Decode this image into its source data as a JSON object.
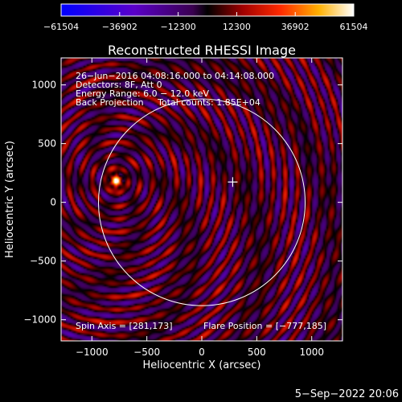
{
  "chart_data": {
    "type": "heatmap",
    "title": "Reconstructed RHESSI Image",
    "xlabel": "Heliocentric X (arcsec)",
    "ylabel": "Heliocentric Y (arcsec)",
    "xlim": [
      -1280,
      1280
    ],
    "ylim": [
      -1180,
      1230
    ],
    "x_ticks": [
      -1000,
      -500,
      0,
      500,
      1000
    ],
    "y_ticks": [
      -1000,
      -500,
      0,
      500,
      1000
    ],
    "x_tick_labels": [
      "−1000",
      "−500",
      "0",
      "500",
      "1000"
    ],
    "y_tick_labels": [
      "−1000",
      "−500",
      "0",
      "500",
      "1000"
    ],
    "colorbar": {
      "range": [
        -61504,
        61504
      ],
      "ticks": [
        -61504,
        -36902,
        -12300,
        12300,
        36902,
        61504
      ],
      "tick_labels": [
        "−61504",
        "−36902",
        "−12300",
        "12300",
        "36902",
        "61504"
      ]
    },
    "solar_limb_radius_arcsec": 940,
    "flare_source": {
      "x": -777,
      "y": 185
    },
    "spin_axis_marker": {
      "x": 281,
      "y": 173
    },
    "info_lines": [
      "26−Jun−2016 04:08:16.000 to 04:14:08.000",
      "Detectors: 8F, Att 0",
      "Energy Range: 6.0 − 12.0 keV",
      "Back Projection     Total counts: 1.85E+04"
    ],
    "spin_axis_text": "Spin Axis = [281,173]",
    "flare_position_text": "Flare Position = [−777,185]",
    "timestamp": "5−Sep−2022 20:06"
  }
}
